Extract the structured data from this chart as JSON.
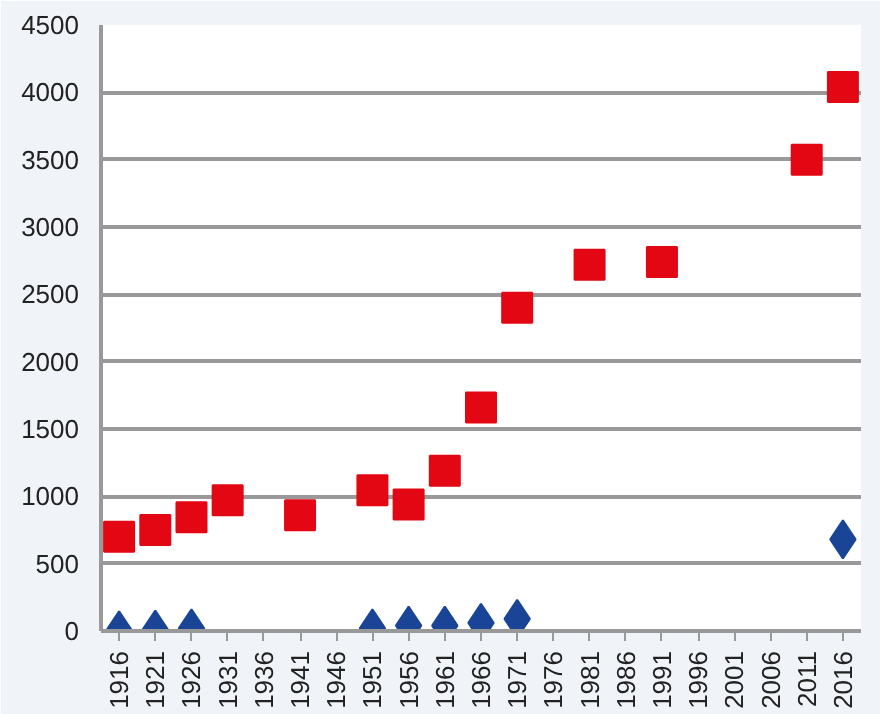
{
  "chart_data": {
    "type": "scatter",
    "categories": [
      "1916",
      "1921",
      "1926",
      "1931",
      "1936",
      "1941",
      "1946",
      "1951",
      "1956",
      "1961",
      "1966",
      "1971",
      "1976",
      "1981",
      "1986",
      "1991",
      "1996",
      "2001",
      "2006",
      "2011",
      "2016"
    ],
    "series": [
      {
        "color": "#e30613",
        "marker": "square",
        "values": [
          700,
          750,
          845,
          970,
          null,
          860,
          null,
          1045,
          940,
          1190,
          1660,
          2400,
          null,
          2720,
          null,
          2740,
          null,
          null,
          null,
          3500,
          4040
        ]
      },
      {
        "color": "#1a4596",
        "marker": "diamond",
        "values": [
          5,
          10,
          20,
          null,
          null,
          null,
          null,
          20,
          40,
          40,
          60,
          90,
          null,
          null,
          null,
          null,
          null,
          null,
          null,
          null,
          680
        ]
      }
    ],
    "ylim": [
      0,
      4500
    ],
    "yticks": [
      0,
      500,
      1000,
      1500,
      2000,
      2500,
      3000,
      3500,
      4000,
      4500
    ],
    "grid": "y"
  }
}
